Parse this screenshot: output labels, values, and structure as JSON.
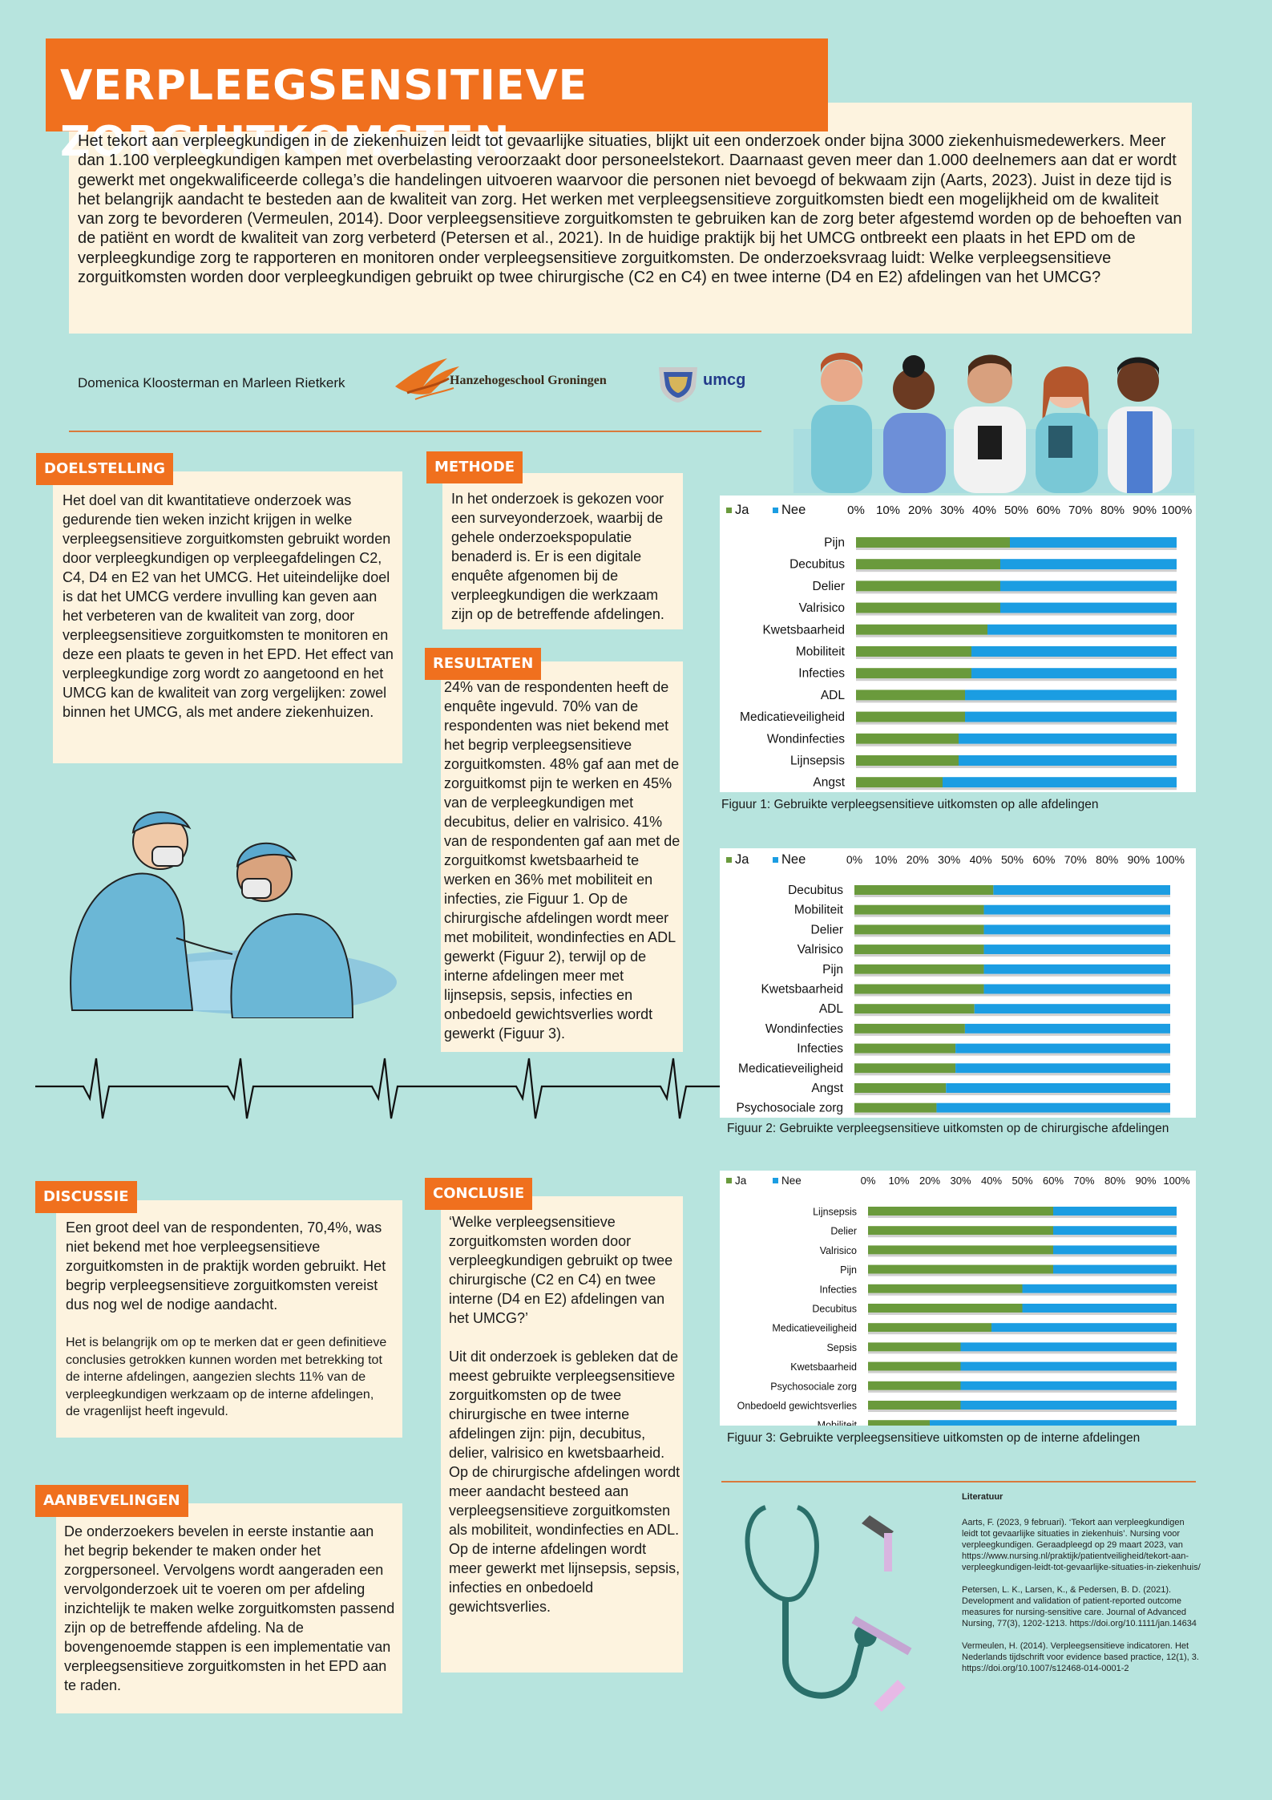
{
  "title": "VERPLEEGSENSITIEVE ZORGUITKOMSTEN",
  "intro": "Het tekort aan verpleegkundigen in de ziekenhuizen leidt tot gevaarlijke situaties, blijkt uit een onderzoek onder bijna 3000 ziekenhuismedewerkers. Meer dan 1.100 verpleegkundigen kampen met overbelasting veroorzaakt door personeelstekort. Daarnaast geven meer dan 1.000 deelnemers aan dat er wordt gewerkt met ongekwalificeerde collega’s die handelingen uitvoeren waarvoor die personen niet bevoegd of bekwaam zijn (Aarts, 2023). Juist in deze tijd is het belangrijk aandacht te besteden aan de kwaliteit van zorg. Het werken met verpleegsensitieve zorguitkomsten biedt een mogelijkheid om de kwaliteit van zorg te bevorderen (Vermeulen, 2014). Door verpleegsensitieve zorguitkomsten te gebruiken kan de zorg beter afgestemd worden op de behoeften van de patiënt en wordt de kwaliteit van zorg verbeterd (Petersen et al., 2021). In de huidige praktijk bij het UMCG ontbreekt een plaats in het EPD om de verpleegkundige zorg te rapporteren en monitoren onder verpleegsensitieve zorguitkomsten. De onderzoeksvraag luidt: Welke verpleegsensitieve zorguitkomsten worden door verpleegkundigen gebruikt op twee chirurgische (C2 en C4) en twee interne (D4 en E2) afdelingen van het UMCG?",
  "authors": "Domenica Kloosterman en Marleen Rietkerk",
  "logos": {
    "hanze": "Hanzehogeschool Groningen",
    "umcg": "umcg"
  },
  "sections": {
    "doelstelling": {
      "label": "DOELSTELLING",
      "text": "Het doel van dit kwantitatieve onderzoek was gedurende tien weken inzicht krijgen in welke verpleegsensitieve zorguitkomsten gebruikt worden door verpleegkundigen op verpleegafdelingen C2, C4, D4 en E2 van het UMCG. Het uiteindelijke doel is dat het UMCG verdere invulling kan geven aan het verbeteren van de kwaliteit van zorg, door verpleegsensitieve zorguitkomsten te monitoren en deze een plaats te geven in het EPD. Het effect van verpleegkundige zorg wordt zo aangetoond en het UMCG kan de kwaliteit van zorg vergelijken: zowel binnen het UMCG, als met andere ziekenhuizen."
    },
    "methode": {
      "label": "METHODE",
      "text": "In het onderzoek is gekozen voor een surveyonderzoek, waarbij de gehele onderzoekspopulatie benaderd is. Er is een digitale enquête afgenomen bij de verpleegkundigen die werkzaam zijn op de betreffende afdelingen."
    },
    "resultaten": {
      "label": "RESULTATEN",
      "text": "24% van de respondenten heeft de enquête ingevuld. 70% van de respondenten was niet bekend met het begrip verpleegsensitieve zorguitkomsten. 48% gaf aan met de zorguitkomst pijn te werken en 45% van de verpleegkundigen met decubitus, delier en valrisico. 41% van de respondenten gaf aan met de zorguitkomst kwetsbaarheid te werken en 36% met mobiliteit en infecties, zie Figuur 1. Op de chirurgische afdelingen wordt meer met mobiliteit, wondinfecties en ADL gewerkt (Figuur 2), terwijl op de interne afdelingen meer met lijnsepsis, sepsis, infecties en onbedoeld gewichtsverlies wordt gewerkt (Figuur 3)."
    },
    "discussie": {
      "label": "DISCUSSIE",
      "text1": "Een groot deel van de respondenten, 70,4%, was niet bekend met hoe verpleegsensitieve zorguitkomsten in de praktijk worden gebruikt. Het begrip verpleegsensitieve zorguitkomsten vereist dus nog wel de nodige aandacht.",
      "text2": "Het is belangrijk om op te merken dat er geen definitieve conclusies getrokken kunnen worden met betrekking tot de interne afdelingen, aangezien slechts 11% van de verpleegkundigen werkzaam op de interne afdelingen, de vragenlijst heeft ingevuld."
    },
    "conclusie": {
      "label": "CONCLUSIE",
      "text1": " ‘Welke verpleegsensitieve zorguitkomsten worden door verpleegkundigen gebruikt op twee chirurgische (C2 en C4) en twee interne (D4 en E2) afdelingen van het UMCG?’",
      "text2": "Uit dit onderzoek is gebleken dat de meest gebruikte verpleegsensitieve zorguitkomsten op de twee chirurgische en twee interne afdelingen zijn: pijn, decubitus, delier, valrisico en kwetsbaarheid. Op de chirurgische afdelingen wordt meer aandacht besteed aan verpleegsensitieve zorguitkomsten als mobiliteit, wondinfecties en ADL. Op de interne afdelingen wordt meer gewerkt met lijnsepsis, sepsis, infecties en onbedoeld gewichtsverlies."
    },
    "aanbevelingen": {
      "label": "AANBEVELINGEN",
      "text": "De onderzoekers bevelen in eerste instantie aan het begrip bekender te maken onder het zorgpersoneel. Vervolgens wordt aangeraden een vervolgonderzoek uit te voeren om per afdeling inzichtelijk te maken welke zorguitkomsten passend zijn op de betreffende afdeling. Na de bovengenoemde stappen is een implementatie van verpleegsensitieve zorguitkomsten in het EPD aan te raden."
    }
  },
  "chart_data": [
    {
      "type": "bar",
      "orientation": "horizontal-stacked-100",
      "caption": "Figuur 1: Gebruikte verpleegsensitieve uitkomsten op alle afdelingen",
      "categories": [
        "Pijn",
        "Decubitus",
        "Delier",
        "Valrisico",
        "Kwetsbaarheid",
        "Mobiliteit",
        "Infecties",
        "ADL",
        "Medicatieveiligheid",
        "Wondinfecties",
        "Lijnsepsis",
        "Angst"
      ],
      "series": [
        {
          "name": "Ja",
          "color": "#6a9a3c",
          "values": [
            48,
            45,
            45,
            45,
            41,
            36,
            36,
            34,
            34,
            32,
            32,
            27
          ]
        },
        {
          "name": "Nee",
          "color": "#1b9de2",
          "values": [
            52,
            55,
            55,
            55,
            59,
            64,
            64,
            66,
            66,
            68,
            68,
            73
          ]
        }
      ],
      "ticks": [
        "0%",
        "10%",
        "20%",
        "30%",
        "40%",
        "50%",
        "60%",
        "70%",
        "80%",
        "90%",
        "100%"
      ],
      "xlim": [
        0,
        100
      ],
      "legend": "top-left"
    },
    {
      "type": "bar",
      "orientation": "horizontal-stacked-100",
      "caption": "Figuur 2: Gebruikte verpleegsensitieve uitkomsten op de chirurgische afdelingen",
      "categories": [
        "Decubitus",
        "Mobiliteit",
        "Delier",
        "Valrisico",
        "Pijn",
        "Kwetsbaarheid",
        "ADL",
        "Wondinfecties",
        "Infecties",
        "Medicatieveiligheid",
        "Angst",
        "Psychosociale zorg"
      ],
      "series": [
        {
          "name": "Ja",
          "color": "#6a9a3c",
          "values": [
            44,
            41,
            41,
            41,
            41,
            41,
            38,
            35,
            32,
            32,
            29,
            26
          ]
        },
        {
          "name": "Nee",
          "color": "#1b9de2",
          "values": [
            56,
            59,
            59,
            59,
            59,
            59,
            62,
            65,
            68,
            68,
            71,
            74
          ]
        }
      ],
      "ticks": [
        "0%",
        "10%",
        "20%",
        "30%",
        "40%",
        "50%",
        "60%",
        "70%",
        "80%",
        "90%",
        "100%"
      ],
      "xlim": [
        0,
        100
      ],
      "legend": "top-left"
    },
    {
      "type": "bar",
      "orientation": "horizontal-stacked-100",
      "caption": "Figuur 3: Gebruikte verpleegsensitieve uitkomsten op de interne afdelingen",
      "categories": [
        "Lijnsepsis",
        "Delier",
        "Valrisico",
        "Pijn",
        "Infecties",
        "Decubitus",
        "Medicatieveiligheid",
        "Sepsis",
        "Kwetsbaarheid",
        "Psychosociale zorg",
        "Onbedoeld gewichtsverlies",
        "Mobiliteit"
      ],
      "series": [
        {
          "name": "Ja",
          "color": "#6a9a3c",
          "values": [
            60,
            60,
            60,
            60,
            50,
            50,
            40,
            30,
            30,
            30,
            30,
            20
          ]
        },
        {
          "name": "Nee",
          "color": "#1b9de2",
          "values": [
            40,
            40,
            40,
            40,
            50,
            50,
            60,
            70,
            70,
            70,
            70,
            80
          ]
        }
      ],
      "ticks": [
        "0%",
        "10%",
        "20%",
        "30%",
        "40%",
        "50%",
        "60%",
        "70%",
        "80%",
        "90%",
        "100%"
      ],
      "xlim": [
        0,
        100
      ],
      "legend": "top-left"
    }
  ],
  "literatuur": {
    "title": "Literatuur",
    "refs": [
      "Aarts, F. (2023, 9 februari). ‘Tekort aan verpleegkundigen leidt tot gevaarlijke situaties in ziekenhuis’. Nursing voor verpleegkundigen. Geraadpleegd op 29 maart 2023, van https://www.nursing.nl/praktijk/patientveiligheid/tekort-aan-verpleegkundigen-leidt-tot-gevaarlijke-situaties-in-ziekenhuis/",
      "Petersen, L. K., Larsen, K., & Pedersen, B. D. (2021). Development and validation of patient-reported outcome measures for nursing-sensitive care. Journal of Advanced Nursing, 77(3), 1202-1213. https://doi.org/10.1111/jan.14634",
      "Vermeulen, H. (2014). Verpleegsensitieve indicatoren. Het Nederlands tijdschrift voor evidence based practice, 12(1), 3. https://doi.org/10.1007/s12468-014-0001-2"
    ]
  }
}
